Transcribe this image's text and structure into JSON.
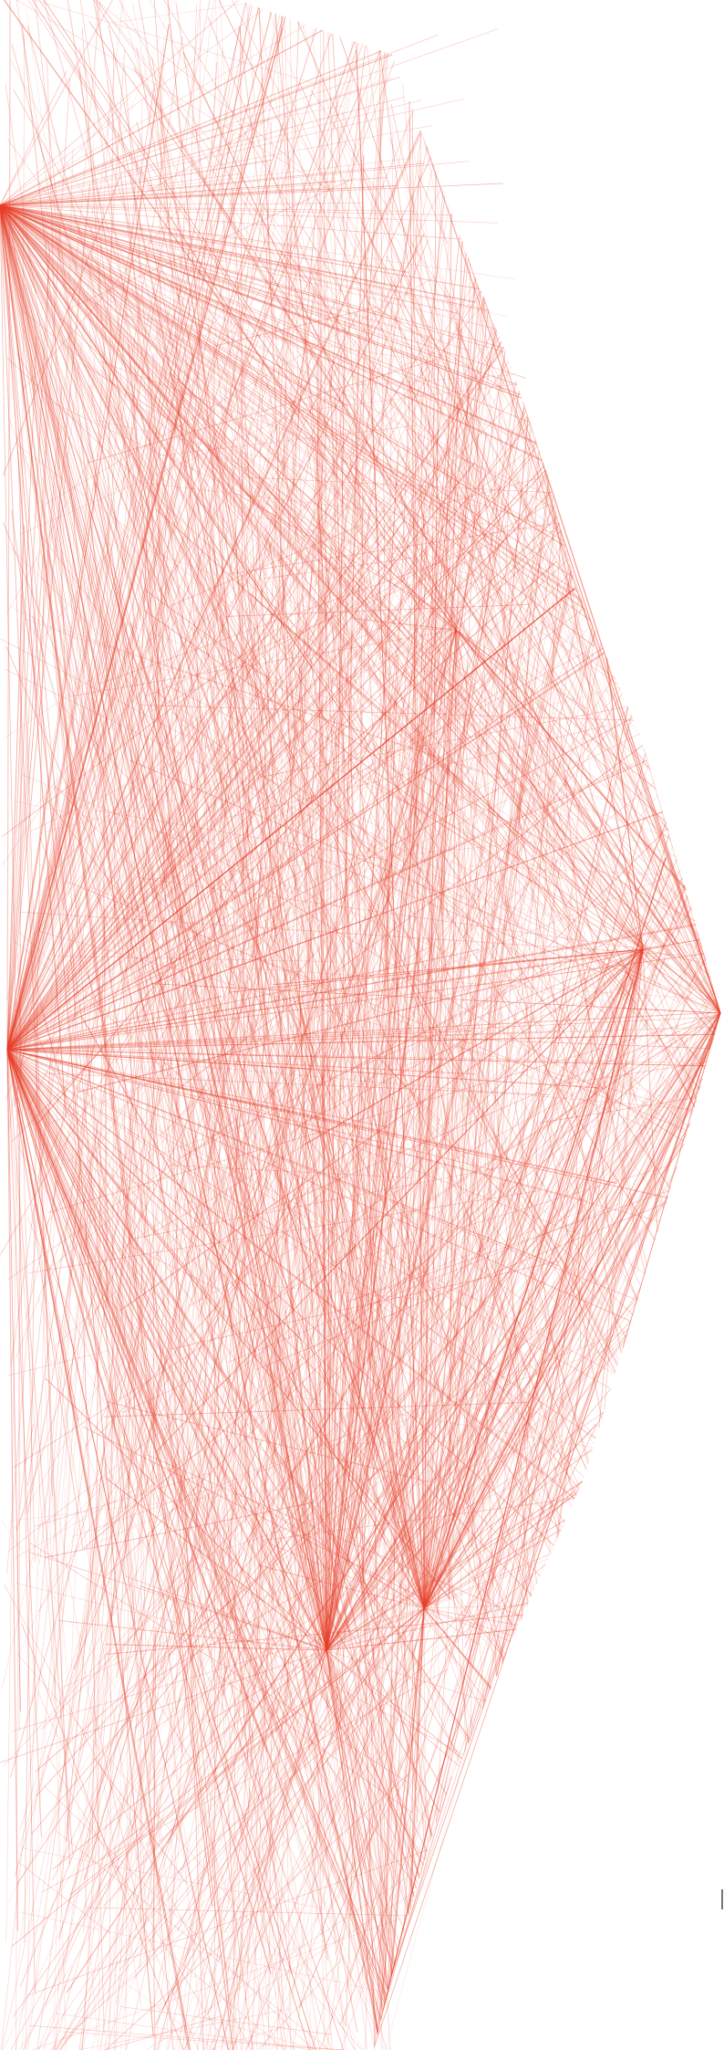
{
  "artwork": {
    "type": "line-art",
    "line_color": "#e8402a",
    "background": "#ffffff",
    "has_text": false
  }
}
